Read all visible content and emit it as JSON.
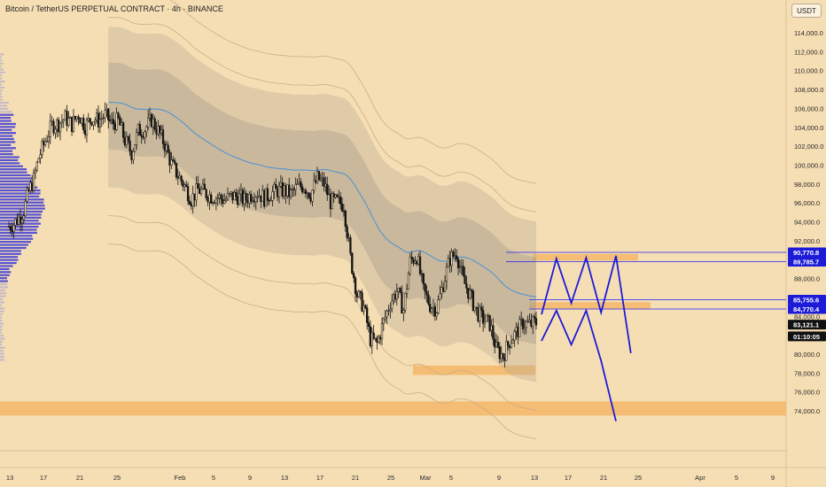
{
  "header": {
    "title": "Bitcoin / TetherUS PERPETUAL CONTRACT · 4h · BINANCE",
    "currency": "USDT"
  },
  "colors": {
    "background": "#f6deb4",
    "candle": "#141414",
    "zone": "#f5b86b",
    "level_line": "#2020ff",
    "badge_blue": "#1c1cd8",
    "badge_dark": "#111111",
    "volume_profile": "#3a3ad8",
    "vwap": "#4a90d9"
  },
  "price_axis": {
    "labels": [
      "114,000.0",
      "112,000.0",
      "110,000.0",
      "108,000.0",
      "106,000.0",
      "104,000.0",
      "102,000.0",
      "100,000.0",
      "98,000.0",
      "96,000.0",
      "94,000.0",
      "92,000.0",
      "88,000.0",
      "84,000.0",
      "82,000.0",
      "80,000.0",
      "78,000.0",
      "76,000.0",
      "74,000.0"
    ],
    "values": [
      114000,
      112000,
      110000,
      108000,
      106000,
      104000,
      102000,
      100000,
      98000,
      96000,
      94000,
      92000,
      88000,
      84000,
      82000,
      80000,
      78000,
      76000,
      74000
    ],
    "badges": [
      {
        "label": "90,770.8",
        "value": 90770.8,
        "style": "blue"
      },
      {
        "label": "89,785.7",
        "value": 89785.7,
        "style": "blue"
      },
      {
        "label": "85,755.6",
        "value": 85755.6,
        "style": "blue"
      },
      {
        "label": "84,770.4",
        "value": 84770.4,
        "style": "blue"
      },
      {
        "label": "83,121.1",
        "value": 83121.1,
        "style": "dark"
      },
      {
        "label": "01:10:05",
        "value": 81880,
        "style": "dark"
      }
    ]
  },
  "time_axis": {
    "labels": [
      "13",
      "17",
      "21",
      "25",
      "Feb",
      "5",
      "9",
      "13",
      "17",
      "21",
      "25",
      "Mar",
      "5",
      "9",
      "13",
      "17",
      "21",
      "25",
      "Apr",
      "5",
      "9"
    ]
  },
  "chart_data": {
    "type": "candlestick",
    "title": "Bitcoin / TetherUS PERPETUAL CONTRACT · 4h · BINANCE",
    "ylim": [
      72000,
      116000
    ],
    "current_price": 83121.1,
    "countdown": "01:10:05",
    "path_points": [
      [
        0,
        93500
      ],
      [
        3,
        93800
      ],
      [
        6,
        94400
      ],
      [
        9,
        95200
      ],
      [
        12,
        97200
      ],
      [
        15,
        98500
      ],
      [
        18,
        100800
      ],
      [
        22,
        102600
      ],
      [
        26,
        104200
      ],
      [
        30,
        104400
      ],
      [
        34,
        105000
      ],
      [
        38,
        104300
      ],
      [
        42,
        105400
      ],
      [
        46,
        104100
      ],
      [
        50,
        105000
      ],
      [
        54,
        104700
      ],
      [
        58,
        105300
      ],
      [
        62,
        104400
      ],
      [
        66,
        104700
      ],
      [
        70,
        102600
      ],
      [
        74,
        101300
      ],
      [
        78,
        103600
      ],
      [
        82,
        103800
      ],
      [
        86,
        104800
      ],
      [
        90,
        103600
      ],
      [
        94,
        102200
      ],
      [
        98,
        100100
      ],
      [
        102,
        98900
      ],
      [
        106,
        97800
      ],
      [
        110,
        96400
      ],
      [
        114,
        97400
      ],
      [
        118,
        97100
      ],
      [
        122,
        96700
      ],
      [
        126,
        96600
      ],
      [
        130,
        96300
      ],
      [
        134,
        96700
      ],
      [
        138,
        96700
      ],
      [
        142,
        96300
      ],
      [
        146,
        96900
      ],
      [
        150,
        97100
      ],
      [
        154,
        96500
      ],
      [
        158,
        97000
      ],
      [
        162,
        97300
      ],
      [
        166,
        97300
      ],
      [
        170,
        96900
      ],
      [
        174,
        97700
      ],
      [
        178,
        97800
      ],
      [
        182,
        96900
      ],
      [
        186,
        98600
      ],
      [
        190,
        98000
      ],
      [
        194,
        96100
      ],
      [
        198,
        96100
      ],
      [
        202,
        95800
      ],
      [
        206,
        90200
      ],
      [
        210,
        86300
      ],
      [
        214,
        85000
      ],
      [
        218,
        81600
      ],
      [
        222,
        81100
      ],
      [
        226,
        83400
      ],
      [
        230,
        85500
      ],
      [
        234,
        86700
      ],
      [
        238,
        84700
      ],
      [
        242,
        89800
      ],
      [
        246,
        90400
      ],
      [
        250,
        86700
      ],
      [
        254,
        85200
      ],
      [
        258,
        84800
      ],
      [
        262,
        87500
      ],
      [
        266,
        90100
      ],
      [
        270,
        90700
      ],
      [
        274,
        87800
      ],
      [
        278,
        86300
      ],
      [
        282,
        84500
      ],
      [
        286,
        83700
      ],
      [
        290,
        83200
      ],
      [
        294,
        80500
      ],
      [
        298,
        79800
      ],
      [
        302,
        81400
      ],
      [
        306,
        82300
      ],
      [
        310,
        83300
      ],
      [
        314,
        83100
      ],
      [
        317,
        83300
      ]
    ],
    "price_zones": [
      {
        "low": 73500,
        "high": 75000,
        "extends": "full"
      },
      {
        "low": 77800,
        "high": 78800
      },
      {
        "low": 84800,
        "high": 85500
      },
      {
        "low": 89900,
        "high": 90600
      }
    ],
    "levels": [
      90770.8,
      89785.7,
      85755.6,
      84770.4
    ],
    "projection": [
      [
        0,
        81400
      ],
      [
        7,
        84600
      ],
      [
        14,
        81000
      ],
      [
        21,
        84600
      ],
      [
        28,
        79300
      ],
      [
        35,
        72900
      ]
    ],
    "projection_upper": [
      [
        0,
        84200
      ],
      [
        7,
        90100
      ],
      [
        14,
        85400
      ],
      [
        21,
        90200
      ],
      [
        28,
        84400
      ],
      [
        35,
        90400
      ],
      [
        42,
        80100
      ]
    ]
  }
}
